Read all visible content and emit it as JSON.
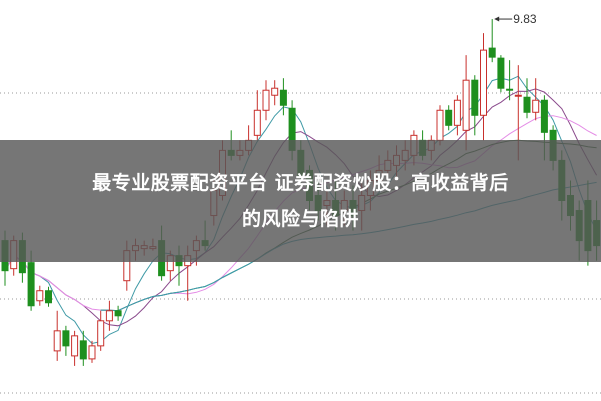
{
  "headline": {
    "line1": "最专业股票配资平台 证券配资炒股：高收益背后",
    "line2": "的风险与陷阱"
  },
  "chart_data": {
    "type": "candlestick",
    "title": "",
    "xlabel": "",
    "ylabel": "",
    "ylim": [
      6.02,
      10.02
    ],
    "grid": true,
    "annotation": {
      "label": "9.83",
      "value": 9.83,
      "candle_index": 56
    },
    "colors": {
      "up": "#c8302c",
      "down": "#1e8f1e",
      "grid": "#9a9a9a",
      "ma5": "#3f9aa6",
      "ma10": "#8a4a8c",
      "ma20": "#e48ce6",
      "ma30": "#3d6b3d",
      "ma60": "#3a9fb0"
    },
    "candles": [
      [
        7.62,
        7.72,
        7.17,
        7.32
      ],
      [
        7.34,
        7.67,
        7.27,
        7.62
      ],
      [
        7.62,
        7.7,
        7.2,
        7.3
      ],
      [
        7.4,
        7.52,
        6.92,
        6.97
      ],
      [
        7.02,
        7.17,
        6.97,
        7.12
      ],
      [
        7.12,
        7.16,
        6.96,
        7.0
      ],
      [
        6.52,
        6.92,
        6.42,
        6.72
      ],
      [
        6.72,
        6.77,
        6.47,
        6.57
      ],
      [
        6.47,
        6.72,
        6.37,
        6.67
      ],
      [
        6.62,
        6.72,
        6.37,
        6.44
      ],
      [
        6.44,
        6.62,
        6.4,
        6.57
      ],
      [
        6.57,
        6.92,
        6.52,
        6.82
      ],
      [
        6.82,
        7.02,
        6.72,
        6.92
      ],
      [
        6.92,
        6.97,
        6.82,
        6.87
      ],
      [
        7.22,
        7.62,
        7.12,
        7.52
      ],
      [
        7.52,
        7.64,
        7.42,
        7.57
      ],
      [
        7.54,
        7.62,
        7.47,
        7.57
      ],
      [
        7.54,
        7.64,
        7.52,
        7.56
      ],
      [
        7.62,
        7.77,
        7.22,
        7.27
      ],
      [
        7.32,
        7.52,
        7.22,
        7.47
      ],
      [
        7.47,
        7.57,
        7.17,
        7.37
      ],
      [
        7.37,
        7.57,
        7.02,
        7.47
      ],
      [
        7.52,
        7.67,
        7.37,
        7.62
      ],
      [
        7.62,
        7.82,
        7.52,
        7.57
      ],
      [
        7.87,
        8.22,
        7.77,
        8.12
      ],
      [
        8.07,
        8.62,
        8.02,
        8.52
      ],
      [
        8.52,
        8.72,
        8.42,
        8.47
      ],
      [
        8.47,
        8.62,
        8.42,
        8.52
      ],
      [
        8.52,
        8.77,
        8.47,
        8.62
      ],
      [
        8.67,
        9.12,
        8.62,
        8.92
      ],
      [
        8.92,
        9.22,
        8.82,
        9.12
      ],
      [
        9.07,
        9.22,
        8.97,
        9.14
      ],
      [
        9.12,
        9.24,
        8.87,
        8.97
      ],
      [
        8.94,
        9.02,
        8.42,
        8.52
      ],
      [
        8.52,
        8.62,
        8.12,
        8.27
      ],
      [
        8.32,
        8.37,
        7.92,
        8.02
      ],
      [
        8.07,
        8.22,
        7.82,
        7.92
      ],
      [
        7.97,
        8.12,
        7.77,
        8.02
      ],
      [
        8.02,
        8.22,
        7.72,
        7.87
      ],
      [
        7.92,
        8.12,
        7.77,
        8.02
      ],
      [
        8.02,
        8.17,
        7.72,
        7.87
      ],
      [
        7.92,
        8.22,
        7.72,
        8.07
      ],
      [
        8.07,
        8.32,
        7.92,
        8.22
      ],
      [
        8.22,
        8.47,
        8.12,
        8.32
      ],
      [
        8.32,
        8.52,
        8.27,
        8.42
      ],
      [
        8.37,
        8.57,
        8.22,
        8.47
      ],
      [
        8.42,
        8.62,
        8.32,
        8.52
      ],
      [
        8.47,
        8.72,
        8.37,
        8.67
      ],
      [
        8.62,
        8.72,
        8.42,
        8.47
      ],
      [
        8.52,
        8.67,
        8.42,
        8.62
      ],
      [
        8.62,
        8.97,
        8.57,
        8.92
      ],
      [
        8.92,
        8.97,
        8.72,
        8.77
      ],
      [
        8.77,
        9.07,
        8.67,
        9.02
      ],
      [
        8.72,
        9.47,
        8.52,
        9.22
      ],
      [
        9.22,
        9.27,
        8.67,
        8.87
      ],
      [
        8.87,
        9.69,
        8.62,
        9.52
      ],
      [
        9.54,
        9.83,
        9.4,
        9.45
      ],
      [
        9.44,
        9.47,
        9.1,
        9.14
      ],
      [
        9.13,
        9.42,
        9.02,
        9.12
      ],
      [
        9.06,
        9.37,
        8.42,
        9.07
      ],
      [
        9.05,
        9.24,
        8.84,
        8.9
      ],
      [
        8.9,
        9.24,
        8.82,
        9.02
      ],
      [
        9.02,
        9.07,
        8.42,
        8.7
      ],
      [
        8.72,
        8.77,
        8.32,
        8.42
      ],
      [
        8.42,
        8.52,
        7.82,
        8.02
      ],
      [
        8.07,
        8.22,
        7.72,
        7.87
      ],
      [
        7.92,
        8.02,
        7.42,
        7.62
      ],
      [
        8.02,
        8.22,
        7.37,
        7.52
      ],
      [
        7.82,
        8.02,
        7.42,
        7.57
      ]
    ],
    "moving_averages": [
      5,
      10,
      20,
      30,
      60
    ]
  }
}
